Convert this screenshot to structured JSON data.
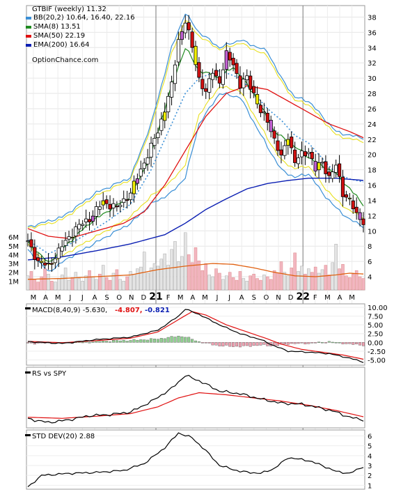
{
  "chart_data": [
    {
      "type": "candlestick",
      "title": "GTBIF (weekly) 11.32",
      "watermark": "OptionChance.com",
      "legend": [
        {
          "label": "BB(20,2) 10.64, 16.40, 22.16",
          "color": "#3a8fd6"
        },
        {
          "label": "SMA(8) 13.51",
          "color": "#1f8a1f"
        },
        {
          "label": "SMA(50) 22.19",
          "color": "#e01010"
        },
        {
          "label": "EMA(200) 16.64",
          "color": "#0b1fb3"
        }
      ],
      "yticks": [
        4,
        6,
        8,
        10,
        12,
        14,
        16,
        18,
        20,
        22,
        24,
        26,
        28,
        30,
        32,
        34,
        36,
        38
      ],
      "ylim": [
        3,
        39.5
      ],
      "xlabels": [
        "M",
        "A",
        "M",
        "J",
        "J",
        "A",
        "S",
        "O",
        "N",
        "D",
        "21",
        "F",
        "M",
        "A",
        "M",
        "J",
        "J",
        "A",
        "S",
        "O",
        "N",
        "D",
        "22",
        "F",
        "M",
        "A",
        "M"
      ],
      "price_anchors": [
        [
          0,
          8.5
        ],
        [
          3,
          6
        ],
        [
          6,
          5.4
        ],
        [
          10,
          8
        ],
        [
          14,
          10.3
        ],
        [
          18,
          11.6
        ],
        [
          22,
          13.8
        ],
        [
          26,
          13
        ],
        [
          30,
          15
        ],
        [
          34,
          19
        ],
        [
          38,
          23
        ],
        [
          42,
          29
        ],
        [
          44,
          35
        ],
        [
          46,
          37.5
        ],
        [
          48,
          34
        ],
        [
          50,
          30
        ],
        [
          52,
          28
        ],
        [
          54,
          31
        ],
        [
          56,
          29.5
        ],
        [
          58,
          33
        ],
        [
          60,
          32
        ],
        [
          62,
          29
        ],
        [
          64,
          30
        ],
        [
          66,
          28
        ],
        [
          68,
          25.5
        ],
        [
          70,
          24.5
        ],
        [
          72,
          22
        ],
        [
          74,
          19.5
        ],
        [
          76,
          22.5
        ],
        [
          78,
          19
        ],
        [
          80,
          20
        ],
        [
          82,
          20.5
        ],
        [
          84,
          18
        ],
        [
          86,
          19
        ],
        [
          88,
          17
        ],
        [
          90,
          18.5
        ],
        [
          92,
          15
        ],
        [
          94,
          14
        ],
        [
          96,
          12
        ],
        [
          98,
          11.3
        ]
      ],
      "bb_upper_anchors": [
        [
          0,
          10.5
        ],
        [
          10,
          11.8
        ],
        [
          20,
          15
        ],
        [
          30,
          17
        ],
        [
          36,
          24
        ],
        [
          42,
          34
        ],
        [
          46,
          38.5
        ],
        [
          50,
          36
        ],
        [
          56,
          34
        ],
        [
          62,
          35
        ],
        [
          70,
          33.5
        ],
        [
          74,
          30
        ],
        [
          78,
          27.5
        ],
        [
          82,
          27
        ],
        [
          86,
          25
        ],
        [
          90,
          23
        ],
        [
          94,
          22.5
        ],
        [
          98,
          22.2
        ]
      ],
      "bb_lower_anchors": [
        [
          0,
          7.5
        ],
        [
          6,
          4.6
        ],
        [
          12,
          6.5
        ],
        [
          18,
          8
        ],
        [
          24,
          9.5
        ],
        [
          30,
          11
        ],
        [
          36,
          13.5
        ],
        [
          42,
          15
        ],
        [
          46,
          17
        ],
        [
          50,
          24
        ],
        [
          56,
          28
        ],
        [
          62,
          27.5
        ],
        [
          70,
          21
        ],
        [
          74,
          18
        ],
        [
          78,
          17
        ],
        [
          82,
          17.5
        ],
        [
          86,
          15
        ],
        [
          90,
          13
        ],
        [
          94,
          11.5
        ],
        [
          98,
          10.6
        ]
      ],
      "sma8_anchors": [
        [
          0,
          8.5
        ],
        [
          6,
          5.8
        ],
        [
          12,
          8.5
        ],
        [
          18,
          11
        ],
        [
          24,
          12.8
        ],
        [
          30,
          14.5
        ],
        [
          36,
          20
        ],
        [
          42,
          29
        ],
        [
          46,
          34
        ],
        [
          50,
          31
        ],
        [
          56,
          30
        ],
        [
          60,
          31.5
        ],
        [
          66,
          28
        ],
        [
          72,
          23
        ],
        [
          78,
          21
        ],
        [
          84,
          19
        ],
        [
          90,
          17.5
        ],
        [
          94,
          15.5
        ],
        [
          98,
          13.5
        ]
      ],
      "sma50_anchors": [
        [
          0,
          10.3
        ],
        [
          6,
          9.3
        ],
        [
          12,
          9
        ],
        [
          20,
          10
        ],
        [
          28,
          11
        ],
        [
          34,
          12.5
        ],
        [
          40,
          16
        ],
        [
          46,
          20.5
        ],
        [
          52,
          25
        ],
        [
          58,
          28
        ],
        [
          64,
          29
        ],
        [
          70,
          28.5
        ],
        [
          76,
          27
        ],
        [
          82,
          25.5
        ],
        [
          88,
          24
        ],
        [
          94,
          23
        ],
        [
          98,
          22.2
        ]
      ],
      "ema200_anchors": [
        [
          0,
          6.2
        ],
        [
          10,
          6.6
        ],
        [
          20,
          7.4
        ],
        [
          30,
          8.3
        ],
        [
          40,
          9.5
        ],
        [
          46,
          11
        ],
        [
          52,
          12.8
        ],
        [
          58,
          14.2
        ],
        [
          64,
          15.5
        ],
        [
          70,
          16.2
        ],
        [
          76,
          16.6
        ],
        [
          82,
          16.9
        ],
        [
          90,
          16.9
        ],
        [
          98,
          16.6
        ]
      ],
      "bb_middle_anchors": [
        [
          0,
          8.8
        ],
        [
          6,
          7
        ],
        [
          12,
          8.2
        ],
        [
          18,
          9.8
        ],
        [
          24,
          11.5
        ],
        [
          30,
          13.5
        ],
        [
          36,
          18
        ],
        [
          42,
          24
        ],
        [
          46,
          28
        ],
        [
          50,
          30
        ],
        [
          56,
          31
        ],
        [
          62,
          30
        ],
        [
          70,
          26
        ],
        [
          74,
          24.5
        ],
        [
          78,
          22.5
        ],
        [
          82,
          21.5
        ],
        [
          86,
          19.5
        ],
        [
          90,
          17.5
        ],
        [
          94,
          16.8
        ],
        [
          98,
          16.4
        ]
      ]
    },
    {
      "type": "bar",
      "title": "Volume",
      "yticks": [
        "1M",
        "2M",
        "3M",
        "4M",
        "5M",
        "6M"
      ],
      "ylim": [
        0,
        6.8
      ],
      "values": [
        1.6,
        2.1,
        1.2,
        0.9,
        1.5,
        2.4,
        1.8,
        1.0,
        0.9,
        1.3,
        1.7,
        2.5,
        1.1,
        1.4,
        2.0,
        1.3,
        1.0,
        1.6,
        2.2,
        1.5,
        1.2,
        1.8,
        2.8,
        1.4,
        1.1,
        1.9,
        2.3,
        1.2,
        1.0,
        1.5,
        2.1,
        1.8,
        2.4,
        2.6,
        4.3,
        1.9,
        2.5,
        3.0,
        2.7,
        3.5,
        4.1,
        2.8,
        4.6,
        5.5,
        3.2,
        3.8,
        6.5,
        4.0,
        3.1,
        4.8,
        3.3,
        2.2,
        3.0,
        1.7,
        1.5,
        2.4,
        1.9,
        1.2,
        1.6,
        2.0,
        1.4,
        1.1,
        2.1,
        1.3,
        1.0,
        1.6,
        1.8,
        1.3,
        1.1,
        1.7,
        1.5,
        1.2,
        2.2,
        1.9,
        3.2,
        2.0,
        1.6,
        2.5,
        4.2,
        2.1,
        2.7,
        1.8,
        2.4,
        2.0,
        2.6,
        1.9,
        2.3,
        2.8,
        1.7,
        3.1,
        5.2,
        2.4,
        2.9,
        1.6,
        1.4,
        1.8,
        2.2,
        1.5,
        1.3
      ],
      "avg_anchors": [
        [
          0,
          1.2
        ],
        [
          10,
          1.3
        ],
        [
          20,
          1.5
        ],
        [
          30,
          1.7
        ],
        [
          38,
          2.3
        ],
        [
          46,
          2.7
        ],
        [
          54,
          3.0
        ],
        [
          60,
          2.9
        ],
        [
          66,
          2.5
        ],
        [
          72,
          2.0
        ],
        [
          78,
          1.6
        ],
        [
          84,
          1.5
        ],
        [
          90,
          1.7
        ],
        [
          94,
          1.9
        ],
        [
          98,
          1.8
        ]
      ]
    },
    {
      "type": "line",
      "title": "MACD(8,40,9) -5.630,",
      "values_label": [
        "-4.807,",
        "-0.821"
      ],
      "value_colors": [
        "#e01010",
        "#0b1fb3"
      ],
      "yticks": [
        "10.00",
        "7.50",
        "5.00",
        "2.50",
        "0.00",
        "-2.50",
        "-5.00"
      ],
      "ylim": [
        -6.5,
        11
      ],
      "macd_anchors": [
        [
          0,
          0.2
        ],
        [
          10,
          -0.3
        ],
        [
          20,
          0.8
        ],
        [
          30,
          1.5
        ],
        [
          38,
          3.5
        ],
        [
          44,
          7.5
        ],
        [
          46,
          9.5
        ],
        [
          50,
          8
        ],
        [
          56,
          5
        ],
        [
          62,
          2.5
        ],
        [
          68,
          0.8
        ],
        [
          72,
          -1
        ],
        [
          76,
          -2.5
        ],
        [
          82,
          -2.8
        ],
        [
          88,
          -3.2
        ],
        [
          94,
          -4.5
        ],
        [
          98,
          -5.6
        ]
      ],
      "signal_anchors": [
        [
          0,
          0.3
        ],
        [
          10,
          -0.1
        ],
        [
          20,
          0.5
        ],
        [
          30,
          1.2
        ],
        [
          38,
          3
        ],
        [
          44,
          6.5
        ],
        [
          48,
          8.8
        ],
        [
          52,
          7.8
        ],
        [
          58,
          5
        ],
        [
          64,
          3
        ],
        [
          70,
          1
        ],
        [
          74,
          -0.5
        ],
        [
          80,
          -2
        ],
        [
          86,
          -2.8
        ],
        [
          92,
          -3.6
        ],
        [
          98,
          -4.8
        ]
      ],
      "hist_anchors": [
        [
          0,
          -0.3
        ],
        [
          10,
          -0.2
        ],
        [
          20,
          0.3
        ],
        [
          30,
          0.6
        ],
        [
          38,
          1
        ],
        [
          44,
          1.8
        ],
        [
          46,
          1.6
        ],
        [
          50,
          0.2
        ],
        [
          56,
          -1
        ],
        [
          62,
          -1.2
        ],
        [
          68,
          -0.8
        ],
        [
          72,
          -1
        ],
        [
          76,
          -0.4
        ],
        [
          82,
          -0.3
        ],
        [
          88,
          0.2
        ],
        [
          94,
          -0.5
        ],
        [
          98,
          -0.8
        ]
      ]
    },
    {
      "type": "line",
      "title": "RS vs SPY",
      "rs_anchors": [
        [
          0,
          0.12
        ],
        [
          6,
          0.05
        ],
        [
          12,
          0.1
        ],
        [
          18,
          0.18
        ],
        [
          24,
          0.2
        ],
        [
          30,
          0.25
        ],
        [
          36,
          0.45
        ],
        [
          42,
          0.7
        ],
        [
          46,
          0.95
        ],
        [
          50,
          0.85
        ],
        [
          56,
          0.65
        ],
        [
          62,
          0.6
        ],
        [
          68,
          0.5
        ],
        [
          74,
          0.42
        ],
        [
          80,
          0.4
        ],
        [
          86,
          0.32
        ],
        [
          90,
          0.25
        ],
        [
          94,
          0.15
        ],
        [
          98,
          0.1
        ]
      ],
      "rs_avg_anchors": [
        [
          0,
          0.15
        ],
        [
          10,
          0.13
        ],
        [
          20,
          0.17
        ],
        [
          30,
          0.22
        ],
        [
          38,
          0.35
        ],
        [
          44,
          0.52
        ],
        [
          50,
          0.62
        ],
        [
          58,
          0.58
        ],
        [
          66,
          0.52
        ],
        [
          74,
          0.46
        ],
        [
          82,
          0.38
        ],
        [
          90,
          0.28
        ],
        [
          98,
          0.16
        ]
      ]
    },
    {
      "type": "line",
      "title": "STD DEV(20) 2.88",
      "yticks": [
        1,
        2,
        3,
        4,
        5,
        6
      ],
      "ylim": [
        0.6,
        6.6
      ],
      "values_anchors": [
        [
          0,
          0.8
        ],
        [
          4,
          2.0
        ],
        [
          12,
          2.2
        ],
        [
          20,
          2.3
        ],
        [
          28,
          2.5
        ],
        [
          34,
          3.2
        ],
        [
          40,
          4.8
        ],
        [
          44,
          6.3
        ],
        [
          48,
          5.8
        ],
        [
          52,
          4.5
        ],
        [
          56,
          3.0
        ],
        [
          62,
          2.4
        ],
        [
          68,
          2.2
        ],
        [
          72,
          2.7
        ],
        [
          76,
          3.8
        ],
        [
          82,
          3.5
        ],
        [
          86,
          3.0
        ],
        [
          90,
          2.4
        ],
        [
          94,
          2.2
        ],
        [
          98,
          2.9
        ]
      ]
    }
  ]
}
